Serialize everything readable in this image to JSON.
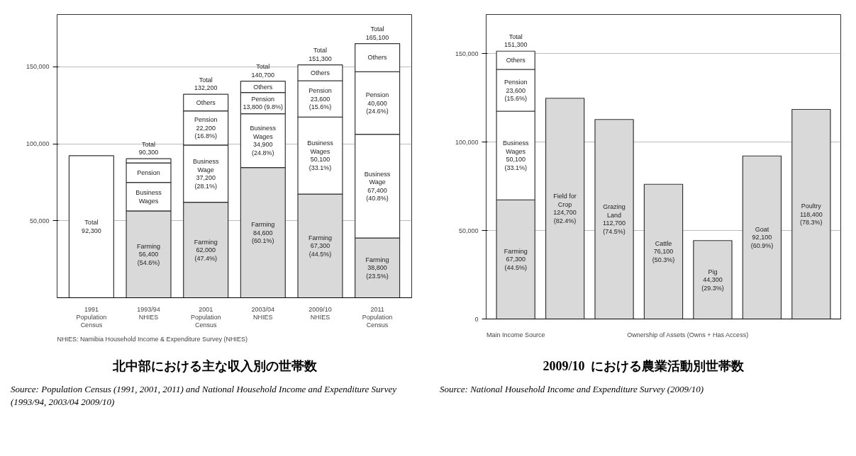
{
  "chart_data": [
    {
      "type": "bar",
      "stacked": true,
      "title": "北中部における主な収入別の世帯数",
      "categories": [
        "1991\nPopulation\nCensus",
        "1993/94\nNHIES",
        "2001\nPopulation\nCensus",
        "2003/04\nNHIES",
        "2009/10\nNHIES",
        "2011\nPopulation\nCensus"
      ],
      "series": [
        {
          "color": "#ffffff",
          "values": [
            92300,
            null,
            null,
            null,
            null,
            null
          ],
          "value_labels": [
            "Total\n92,300",
            null,
            null,
            null,
            null,
            null
          ]
        },
        {
          "color": "#d9d9d9",
          "values": [
            null,
            56400,
            62000,
            84600,
            67300,
            38800
          ],
          "value_labels": [
            null,
            "Farming\n56,400\n(54.6%)",
            "Farming\n62,000\n(47.4%)",
            "Farming\n84,600\n(60.1%)",
            "Farming\n67,300\n(44.5%)",
            "Farming\n38,800\n(23.5%)"
          ]
        },
        {
          "color": "#ffffff",
          "values": [
            null,
            18500,
            37200,
            34900,
            50100,
            67400
          ],
          "value_labels": [
            null,
            "Business\nWages",
            "Business\nWage\n37,200\n(28.1%)",
            "Business\nWages\n34,900\n(24.8%)",
            "Business\nWages\n50,100\n(33.1%)",
            "Business\nWage\n67,400\n(40.8%)"
          ]
        },
        {
          "color": "#ffffff",
          "values": [
            null,
            12700,
            22200,
            13800,
            23600,
            40600
          ],
          "value_labels": [
            null,
            "Pension",
            "Pension\n22,200\n(16.8%)",
            "Pension\n13,800 (9.8%)",
            "Pension\n23,600\n(15.6%)",
            "Pension\n40,600\n(24.6%)"
          ]
        },
        {
          "color": "#ffffff",
          "values": [
            null,
            2700,
            10800,
            7400,
            10300,
            18300
          ],
          "value_labels": [
            null,
            null,
            "Others",
            "Others",
            "Others",
            "Others"
          ]
        }
      ],
      "totals": [
        null,
        "Total\n90,300",
        "Total\n132,200",
        "Total\n140,700",
        "Total\n151,300",
        "Total\n165,100"
      ],
      "ylim": [
        0,
        184000
      ],
      "yticks": [
        {
          "value": 50000,
          "label": "50,000"
        },
        {
          "value": 100000,
          "label": "100,000"
        },
        {
          "value": 150000,
          "label": "150,000"
        }
      ],
      "grid": "y",
      "annotations": [
        "NHIES: Namibia Household Income & Expenditure Survey (NHIES)",
        "Source: Population Census (1991, 2001, 2011) and National Household Income and Expenditure Survey (1993/94, 2003/04 2009/10)"
      ]
    },
    {
      "type": "bar",
      "stacked": true,
      "title": "2009/10  における農業活動別世帯数",
      "categories": [
        null,
        null,
        null,
        null,
        null,
        null,
        null
      ],
      "series": [
        {
          "color": "#d9d9d9",
          "values": [
            67300,
            null,
            null,
            null,
            null,
            null,
            null
          ],
          "value_labels": [
            "Farming\n67,300\n(44.5%)",
            null,
            null,
            null,
            null,
            null,
            null
          ]
        },
        {
          "color": "#ffffff",
          "values": [
            50100,
            null,
            null,
            null,
            null,
            null,
            null
          ],
          "value_labels": [
            "Business\nWages\n50,100\n(33.1%)",
            null,
            null,
            null,
            null,
            null,
            null
          ]
        },
        {
          "color": "#ffffff",
          "values": [
            23600,
            null,
            null,
            null,
            null,
            null,
            null
          ],
          "value_labels": [
            "Pension\n23,600\n(15.6%)",
            null,
            null,
            null,
            null,
            null,
            null
          ]
        },
        {
          "color": "#ffffff",
          "values": [
            10300,
            null,
            null,
            null,
            null,
            null,
            null
          ],
          "value_labels": [
            "Others",
            null,
            null,
            null,
            null,
            null,
            null
          ]
        },
        {
          "color": "#d9d9d9",
          "values": [
            null,
            124700,
            112700,
            76100,
            44300,
            92100,
            118400
          ],
          "value_labels": [
            null,
            "Field for\nCrop\n124,700\n(82.4%)",
            "Grazing\nLand\n112,700\n(74.5%)",
            "Cattle\n76,100\n(50.3%)",
            "Pig\n44,300\n(29.3%)",
            "Goat\n92,100\n(60.9%)",
            "Poultry\n118,400\n(78.3%)"
          ]
        }
      ],
      "totals": [
        "Total\n151,300",
        null,
        null,
        null,
        null,
        null,
        null
      ],
      "ylim": [
        0,
        172000
      ],
      "yticks": [
        0,
        {
          "value": 50000,
          "label": "50,000"
        },
        {
          "value": 100000,
          "label": "100,000"
        },
        {
          "value": 150000,
          "label": "150,000"
        }
      ],
      "grid": "y",
      "annotations": [
        "Main Income Source",
        "Ownership of Assets (Owns + Has Access)",
        "Source: National Household Income and Expenditure Survey (2009/10)"
      ]
    }
  ]
}
